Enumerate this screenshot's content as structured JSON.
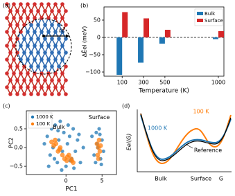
{
  "figure": {
    "panel_labels": [
      "(a)",
      "(b)",
      "(c)",
      "(d)"
    ],
    "structure": {
      "radius_label": "rc"
    },
    "schematic": {
      "ylabel": "Eel(G)",
      "xlabel": "G",
      "x_labels": [
        "Bulk",
        "Surface"
      ],
      "curve_labels": [
        "100 K",
        "1000 K",
        "Reference"
      ]
    }
  },
  "chart_data": [
    {
      "type": "bar",
      "ylabel": "ΔĒel (meV)",
      "xlabel": "Temperature (K)",
      "x": [
        100,
        300,
        500,
        1000
      ],
      "series": [
        {
          "name": "Bulk",
          "color": "#1f77b4",
          "values": [
            -108,
            -73,
            -18,
            -5
          ]
        },
        {
          "name": "Surface",
          "color": "#d62728",
          "values": [
            73,
            55,
            22,
            18
          ]
        }
      ],
      "xlim": [
        -70,
        1052
      ],
      "ylim": [
        -112,
        88
      ],
      "xticks": [
        100,
        300,
        500,
        1000
      ],
      "yticks": [
        {
          "value": -100,
          "label": "−100"
        },
        {
          "value": -50,
          "label": "−50"
        },
        0,
        50
      ],
      "legend": "upper right"
    },
    {
      "type": "scatter",
      "xlabel": "PC1",
      "ylabel": "PC2",
      "annotations": [
        "Bulk",
        "Surface"
      ],
      "series": [
        {
          "name": "1000 K",
          "color": "#1f77b4",
          "x": [
            -3.0,
            -2.6,
            -2.2,
            -2.0,
            -1.8,
            -1.5,
            -1.2,
            -1.0,
            -0.8,
            -0.5,
            -0.3,
            0,
            0.2,
            0.5,
            0.8,
            1.0,
            1.3,
            1.6,
            2.0,
            2.4,
            -2.4,
            -1.6,
            -0.6,
            0.3,
            1.1,
            1.8,
            -1.1,
            0.6,
            3.6,
            3.9,
            4.2,
            4.4,
            4.6,
            4.8,
            5.0,
            5.2,
            4.1,
            4.7,
            4.3,
            4.9
          ],
          "values": [
            0.1,
            0.3,
            -0.2,
            0.5,
            0.0,
            0.6,
            -0.4,
            0.2,
            0.7,
            -0.1,
            0.4,
            -0.5,
            0.1,
            0.3,
            -0.3,
            0.5,
            -0.1,
            0.2,
            -0.4,
            0.0,
            -0.5,
            -0.3,
            -0.6,
            0.6,
            -0.55,
            0.35,
            0.45,
            -0.35,
            0.3,
            -0.2,
            0.4,
            0.0,
            0.5,
            -0.3,
            0.2,
            -0.1,
            -0.4,
            0.35,
            0.1,
            -0.45
          ]
        },
        {
          "name": "100 K",
          "color": "#ff7f0e",
          "x": [
            -2.0,
            -1.7,
            -1.4,
            -1.1,
            -0.8,
            -0.5,
            -0.2,
            0.1,
            0.4,
            0.7,
            1.0,
            -1.5,
            -0.9,
            0.2,
            0.8,
            4.3,
            4.5,
            4.7,
            4.4,
            4.6,
            4.8,
            4.5
          ],
          "values": [
            0.15,
            0.05,
            0.1,
            -0.1,
            0.0,
            -0.2,
            -0.3,
            -0.35,
            -0.2,
            -0.3,
            -0.4,
            0.2,
            -0.05,
            -0.25,
            -0.35,
            0.1,
            0.0,
            -0.1,
            -0.2,
            0.2,
            0.05,
            -0.3
          ]
        }
      ],
      "xlim": [
        -5.5,
        7
      ],
      "ylim": [
        -0.72,
        0.98
      ],
      "xticks": [
        0,
        5
      ],
      "yticks": [
        {
          "value": -0.5,
          "label": "−0.5"
        },
        {
          "value": 0,
          "label": "0.0"
        },
        0.5
      ],
      "legend": "upper left"
    }
  ]
}
